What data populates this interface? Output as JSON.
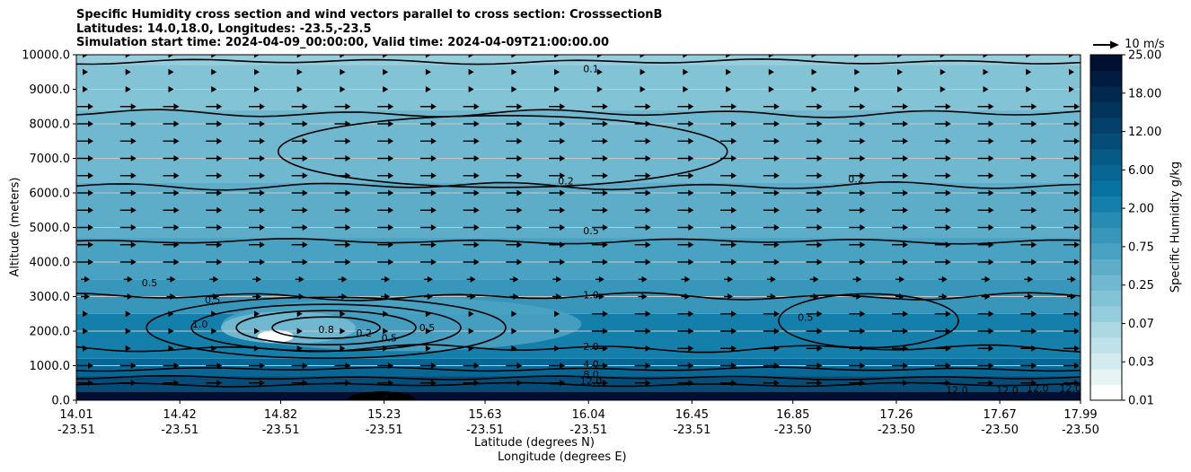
{
  "title_lines": [
    "Specific Humidity cross section and wind vectors parallel to cross section: CrosssectionB",
    "Latitudes: 14.0,18.0, Longitudes: -23.5,-23.5",
    "Simulation start time: 2024-04-09_00:00:00, Valid time: 2024-04-09T21:00:00.00"
  ],
  "quiver_key_label": "10 m/s",
  "chart_data": {
    "type": "heatmap",
    "title": "Specific Humidity cross section and wind vectors parallel to cross section: CrosssectionB",
    "xlabel_lat": "Latitude (degrees N)",
    "xlabel_lon": "Longitude (degrees E)",
    "ylabel": "Altitude (meters)",
    "ylim": [
      0,
      10000
    ],
    "yticks": [
      "0.0",
      "1000.0",
      "2000.0",
      "3000.0",
      "4000.0",
      "5000.0",
      "6000.0",
      "7000.0",
      "8000.0",
      "9000.0",
      "10000.0"
    ],
    "xticks_lat": [
      "14.01",
      "14.42",
      "14.82",
      "15.23",
      "15.63",
      "16.04",
      "16.45",
      "16.85",
      "17.26",
      "17.67",
      "17.99"
    ],
    "xticks_lon": [
      "-23.51",
      "-23.51",
      "-23.51",
      "-23.51",
      "-23.51",
      "-23.51",
      "-23.51",
      "-23.50",
      "-23.50",
      "-23.50",
      "-23.50"
    ],
    "xtick_lat_values": [
      14.01,
      14.42,
      14.82,
      15.23,
      15.63,
      16.04,
      16.45,
      16.85,
      17.26,
      17.67,
      17.99
    ],
    "grid": "horizontal",
    "colorbar_label": "Specific Humidity g/kg",
    "colorbar_ticks": [
      "0.01",
      "0.03",
      "0.07",
      "0.25",
      "0.75",
      "2.00",
      "6.00",
      "12.00",
      "18.00",
      "25.00"
    ],
    "colorbar_colors": [
      "#ffffff",
      "#e6f4f6",
      "#d3ebef",
      "#bfe2ea",
      "#abd8e3",
      "#96cddc",
      "#82c3d6",
      "#6fb8cf",
      "#5dadc9",
      "#4aa2c2",
      "#3996bb",
      "#278bb4",
      "#157fac",
      "#0873a2",
      "#076694",
      "#065a86",
      "#054d78",
      "#04416a",
      "#03345c",
      "#02284e",
      "#011c40",
      "#000f32"
    ],
    "altitude_bands": [
      {
        "from": 0,
        "to": 250,
        "value": 25
      },
      {
        "from": 250,
        "to": 700,
        "value": 12
      },
      {
        "from": 700,
        "to": 1200,
        "value": 6
      },
      {
        "from": 1200,
        "to": 2500,
        "value": 2
      },
      {
        "from": 2500,
        "to": 3500,
        "value": 1.0
      },
      {
        "from": 3500,
        "to": 4700,
        "value": 0.75
      },
      {
        "from": 4700,
        "to": 6300,
        "value": 0.5
      },
      {
        "from": 6300,
        "to": 8400,
        "value": 0.25
      },
      {
        "from": 8400,
        "to": 9700,
        "value": 0.2
      },
      {
        "from": 9700,
        "to": 10000,
        "value": 0.12
      }
    ],
    "contour_labels": [
      "0.1",
      "0.2",
      "0.2",
      "0.5",
      "0.5",
      "0.5",
      "0.5",
      "0.5",
      "0.5",
      "1.0",
      "1.0",
      "2.0",
      "4.0",
      "8.0",
      "12.0",
      "12.0",
      "12.0",
      "12.0",
      "12.0",
      "0.8",
      "0.2"
    ],
    "wind_vectors": "mostly eastward (parallel to cross section), 2-8 m/s, weakest near 2000 m and above 9000 m"
  }
}
